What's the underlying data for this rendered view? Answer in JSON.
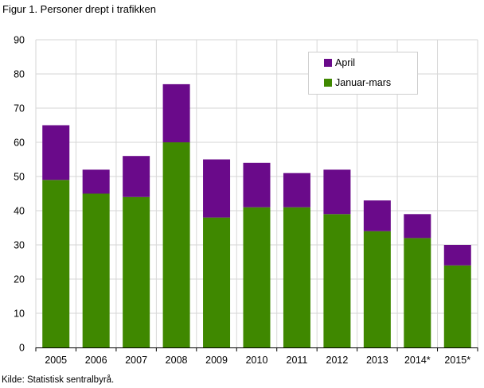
{
  "title": "Figur 1. Personer drept i trafikken",
  "source": "Kilde: Statistisk sentralbyrå.",
  "colors": {
    "januar_mars": "#3f8800",
    "april": "#6a0a8a",
    "grid": "#d6d6d6"
  },
  "chart_data": {
    "type": "bar",
    "stacked": true,
    "categories": [
      "2005",
      "2006",
      "2007",
      "2008",
      "2009",
      "2010",
      "2011",
      "2012",
      "2013",
      "2014*",
      "2015*"
    ],
    "series": [
      {
        "name": "Januar-mars",
        "color": "#3f8800",
        "values": [
          49,
          45,
          44,
          60,
          38,
          41,
          41,
          39,
          34,
          32,
          24
        ]
      },
      {
        "name": "April",
        "color": "#6a0a8a",
        "values": [
          16,
          7,
          12,
          17,
          17,
          13,
          10,
          13,
          9,
          7,
          6
        ]
      }
    ],
    "ylim": [
      0,
      90
    ],
    "yticks": [
      0,
      10,
      20,
      30,
      40,
      50,
      60,
      70,
      80,
      90
    ],
    "grid": true,
    "legend": {
      "position": "top-right",
      "entries": [
        "April",
        "Januar-mars"
      ]
    }
  }
}
